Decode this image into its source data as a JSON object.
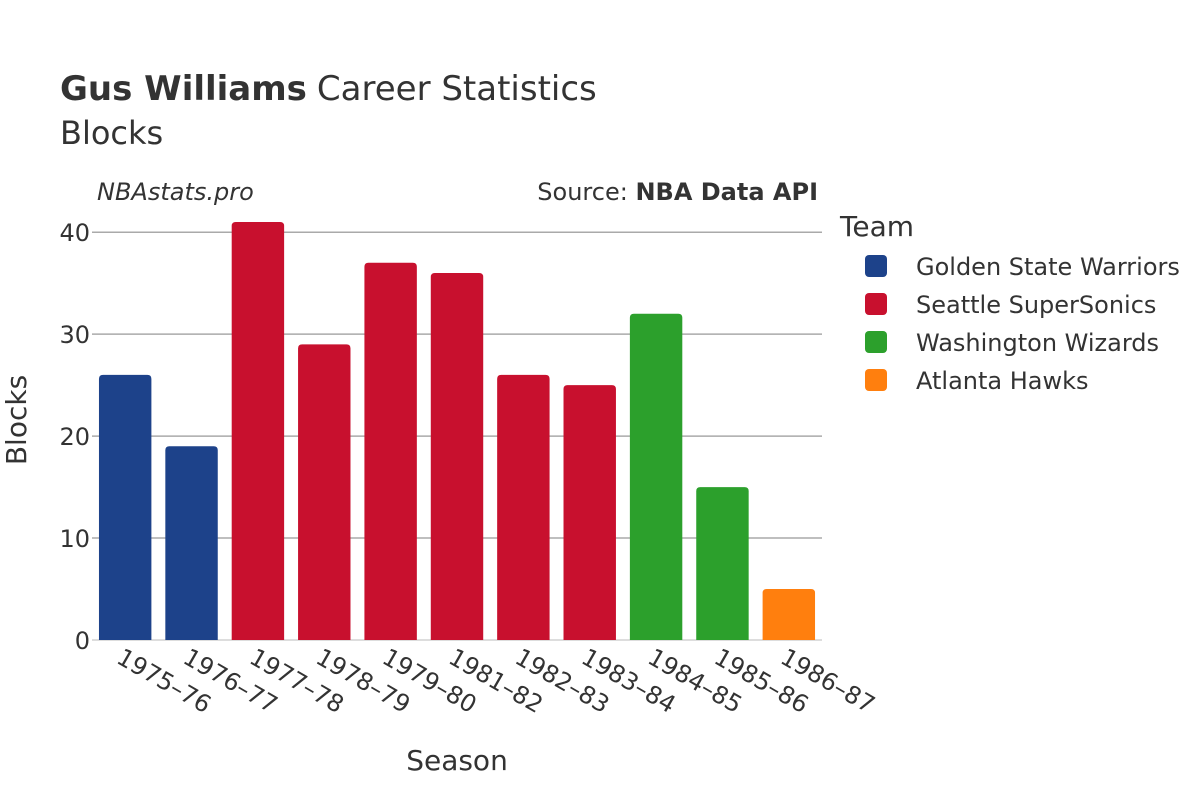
{
  "header": {
    "title_bold": "Gus Williams",
    "title_rest": "Career Statistics",
    "subtitle": "Blocks",
    "site": "NBAstats.pro",
    "source_prefix": "Source: ",
    "source_name": "NBA Data API"
  },
  "legend": {
    "title": "Team",
    "items": [
      {
        "label": "Golden State Warriors",
        "color": "#1d428a"
      },
      {
        "label": "Seattle SuperSonics",
        "color": "#c8102e"
      },
      {
        "label": "Washington Wizards",
        "color": "#2ca02c"
      },
      {
        "label": "Atlanta Hawks",
        "color": "#ff7f0e"
      }
    ]
  },
  "chart_data": {
    "type": "bar",
    "title": "Gus Williams Career Statistics",
    "subtitle": "Blocks",
    "xlabel": "Season",
    "ylabel": "Blocks",
    "ylim": [
      0,
      41
    ],
    "yticks": [
      0,
      10,
      20,
      30,
      40
    ],
    "categories": [
      "1975–76",
      "1976–77",
      "1977–78",
      "1978–79",
      "1979–80",
      "1981–82",
      "1982–83",
      "1983–84",
      "1984–85",
      "1985–86",
      "1986–87"
    ],
    "values": [
      26,
      19,
      41,
      29,
      37,
      36,
      26,
      25,
      32,
      15,
      5
    ],
    "teams": [
      "Golden State Warriors",
      "Golden State Warriors",
      "Seattle SuperSonics",
      "Seattle SuperSonics",
      "Seattle SuperSonics",
      "Seattle SuperSonics",
      "Seattle SuperSonics",
      "Seattle SuperSonics",
      "Washington Wizards",
      "Washington Wizards",
      "Atlanta Hawks"
    ]
  }
}
